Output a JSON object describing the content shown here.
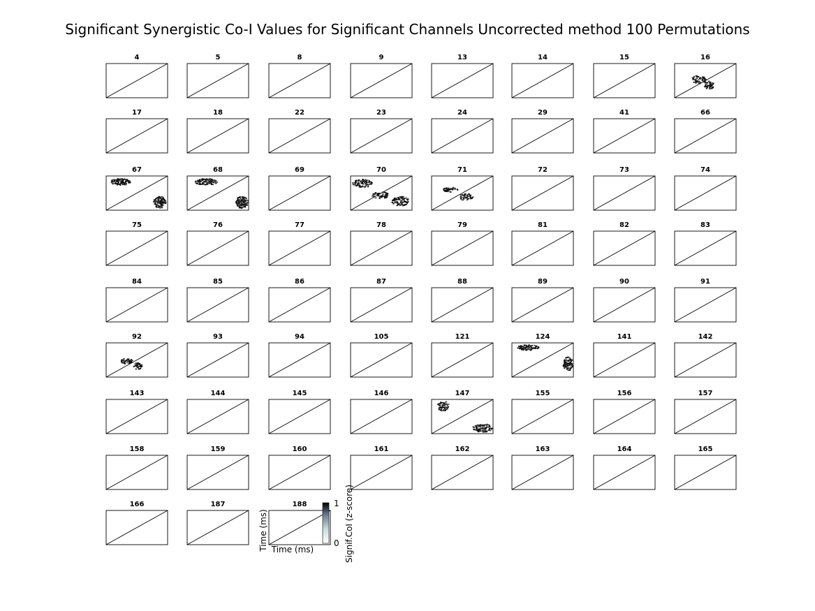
{
  "title": "Significant Synergistic Co-I Values for Significant Channels Uncorrected method 100 Permutations",
  "chart_data": {
    "type": "heatmap",
    "title": "Significant Synergistic Co-I Values for Significant Channels Uncorrected method 100 Permutations",
    "panel_titles": [
      "4",
      "5",
      "8",
      "9",
      "13",
      "14",
      "15",
      "16",
      "17",
      "18",
      "22",
      "23",
      "24",
      "29",
      "41",
      "66",
      "67",
      "68",
      "69",
      "70",
      "71",
      "72",
      "73",
      "74",
      "75",
      "76",
      "77",
      "78",
      "79",
      "81",
      "82",
      "83",
      "84",
      "85",
      "86",
      "87",
      "88",
      "89",
      "90",
      "91",
      "92",
      "93",
      "94",
      "105",
      "121",
      "124",
      "141",
      "142",
      "143",
      "144",
      "145",
      "146",
      "147",
      "155",
      "156",
      "157",
      "158",
      "159",
      "160",
      "161",
      "162",
      "163",
      "164",
      "165",
      "166",
      "187",
      "188"
    ],
    "xlabel": "Time (ms)",
    "ylabel": "Time (ms)",
    "diagonal_line": true,
    "panels_with_significant_clusters": [
      "16",
      "67",
      "68",
      "70",
      "71",
      "92",
      "124",
      "147"
    ],
    "colorbar": {
      "label": "Signif.CoI (z-score)",
      "range": [
        0,
        1
      ],
      "ticks": [
        "0",
        "1"
      ],
      "colormap": "bone (reversed)"
    }
  }
}
